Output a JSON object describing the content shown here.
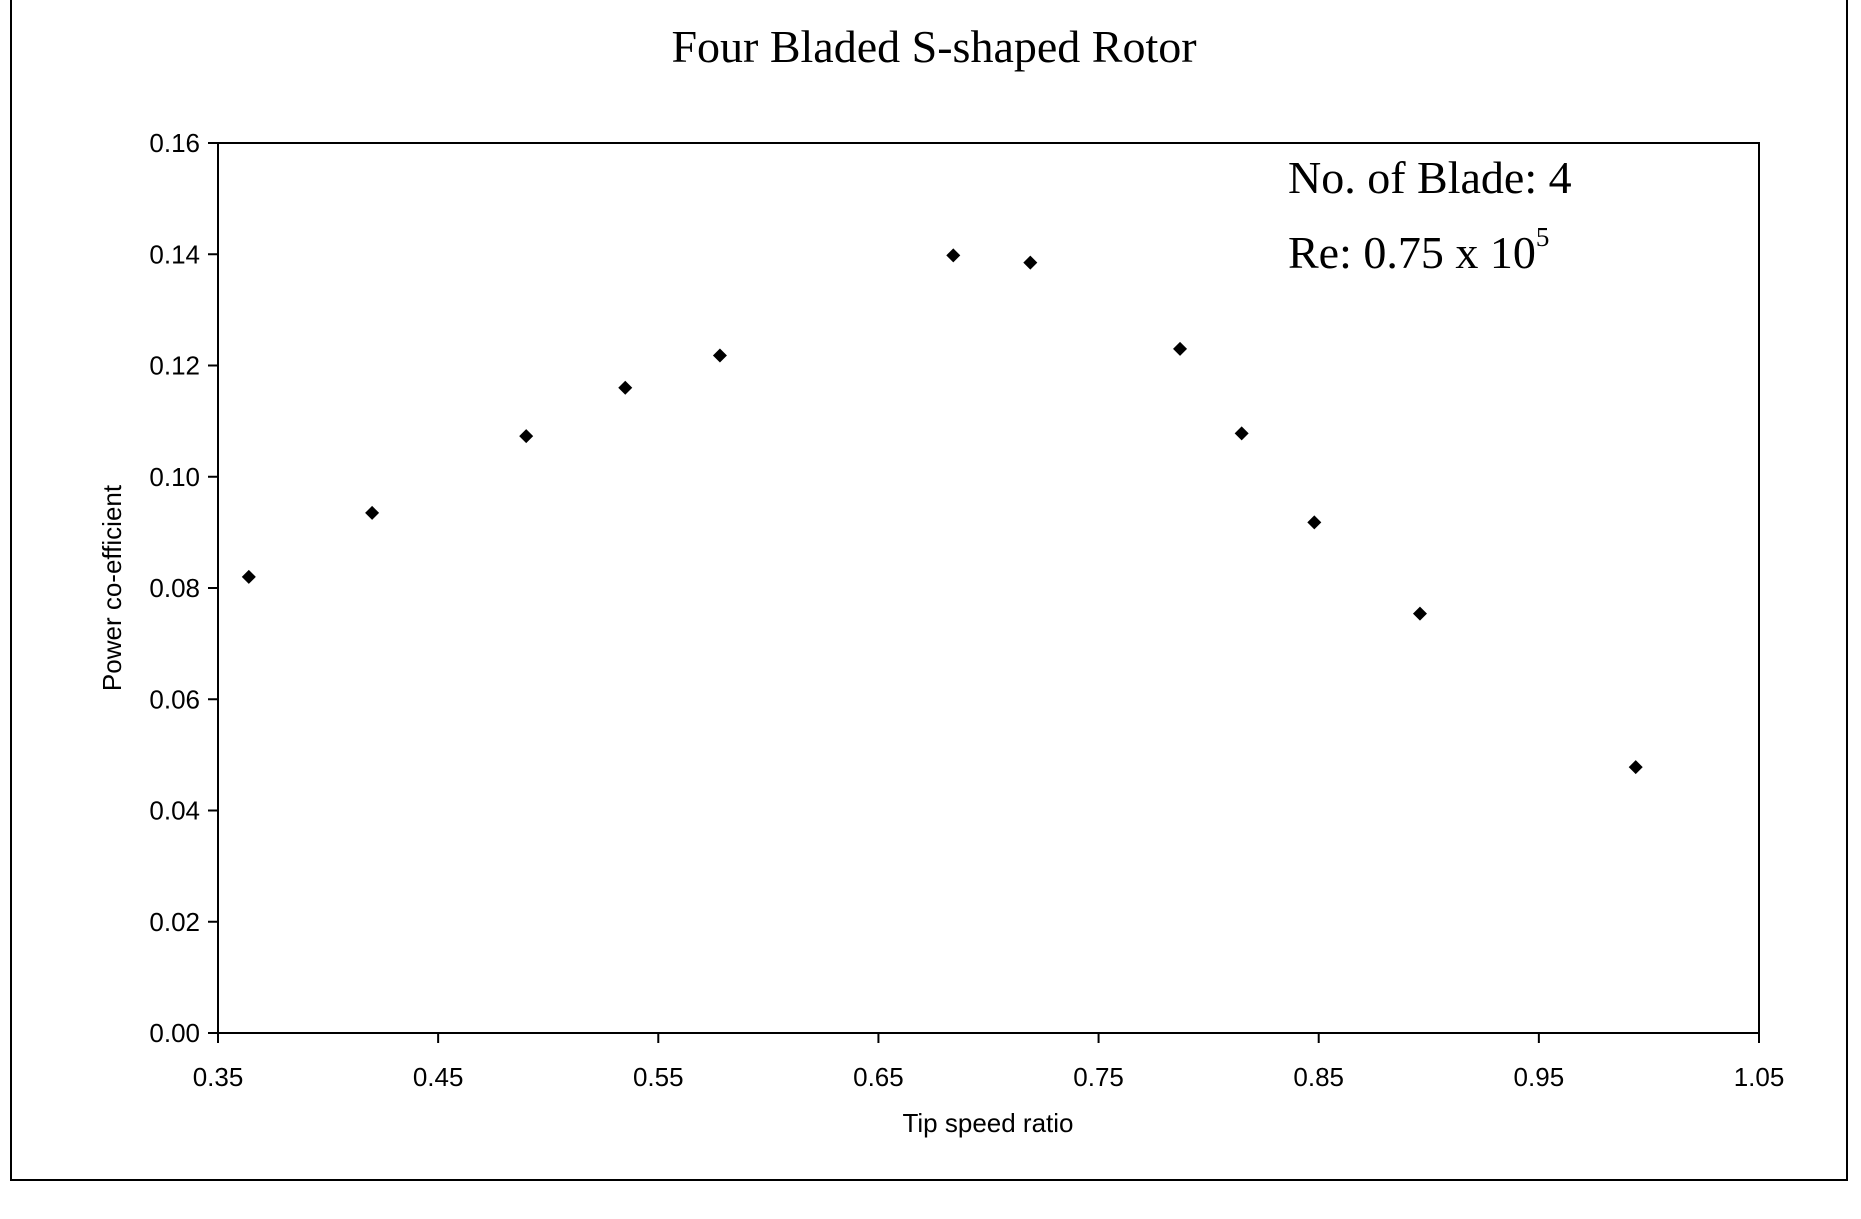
{
  "chart_data": {
    "type": "scatter",
    "title": "Four Bladed S-shaped Rotor",
    "xlabel": "Tip speed ratio",
    "ylabel": "Power co-efficient",
    "xlim": [
      0.35,
      1.05
    ],
    "ylim": [
      0.0,
      0.16
    ],
    "xticks": [
      "0.35",
      "0.45",
      "0.55",
      "0.65",
      "0.75",
      "0.85",
      "0.95",
      "1.05"
    ],
    "yticks": [
      "0.00",
      "0.02",
      "0.04",
      "0.06",
      "0.08",
      "0.10",
      "0.12",
      "0.14",
      "0.16"
    ],
    "grid": false,
    "marker": "diamond",
    "marker_color": "#000000",
    "annotations": {
      "blades": "No. of Blade: 4",
      "re_prefix": "Re: 0.75 x 10",
      "re_exponent": "5"
    },
    "series": [
      {
        "x": [
          0.364,
          0.42,
          0.49,
          0.535,
          0.578,
          0.684,
          0.719,
          0.787,
          0.815,
          0.848,
          0.896,
          0.994
        ],
        "y": [
          0.082,
          0.0935,
          0.1073,
          0.116,
          0.1218,
          0.1398,
          0.1385,
          0.123,
          0.1078,
          0.0918,
          0.0754,
          0.0478
        ]
      }
    ]
  }
}
